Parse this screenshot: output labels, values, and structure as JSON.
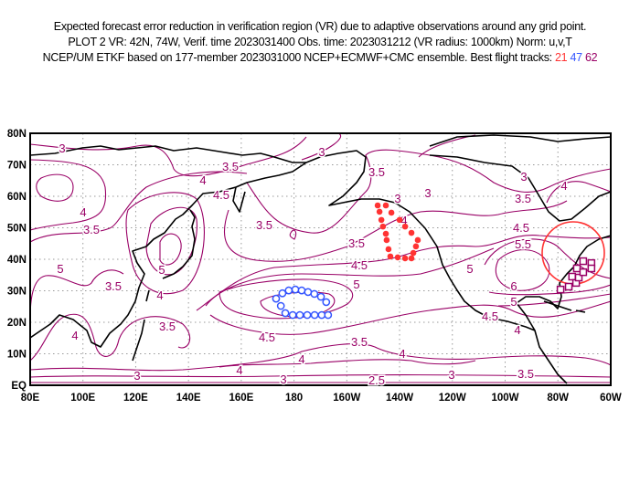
{
  "title": {
    "line1": "Expected forecast error reduction in verification region (VR) due to adaptive observations around any grid point.",
    "line2": "PLOT 2 VR: 42N, 74W, Verif. time 2023031400 Obs. time: 2023031212 (VR radius: 1000km) Norm: u,v,T",
    "line3_prefix": "NCEP/UM ETKF based on 177-member 2023031000 NCEP+ECMWF+CMC ensemble. Best flight tracks:",
    "tracks": [
      "21",
      "47",
      "62"
    ]
  },
  "colors": {
    "track_21": "#ff3333",
    "track_47": "#3355ff",
    "track_62": "#990066",
    "contour": "#990066",
    "vr_circle": "#ff3333"
  },
  "axes": {
    "lon_labels": [
      "80E",
      "100E",
      "120E",
      "140E",
      "160E",
      "180",
      "160W",
      "140W",
      "120W",
      "100W",
      "80W",
      "60W"
    ],
    "lat_labels": [
      "EQ",
      "10N",
      "20N",
      "30N",
      "40N",
      "50N",
      "60N",
      "70N",
      "80N"
    ]
  },
  "contour_labels": [
    "3",
    "3.5",
    "4",
    "4.5",
    "5",
    "3.5",
    "4",
    "3.5",
    "5",
    "4",
    "3.5",
    "4",
    "3.5",
    "3",
    "4",
    "4.5",
    "4",
    "3",
    "3.5",
    "4",
    "3",
    "3.5",
    "4.5",
    "5",
    "3",
    "3.5",
    "4.5",
    "5.5",
    "5",
    "6",
    "5",
    "4.5",
    "4",
    "3",
    "3.5",
    "4",
    "3",
    "3.5",
    "2.5",
    "4",
    "3"
  ],
  "map_data": {
    "vr": {
      "lat": 42,
      "lon": -74,
      "radius_km": 1000
    },
    "track_21_points": [
      [
        211.7,
        57.1
      ],
      [
        214.8,
        57.1
      ],
      [
        212.4,
        55.1
      ],
      [
        216.9,
        54.8
      ],
      [
        213.1,
        52.5
      ],
      [
        220.0,
        52.5
      ],
      [
        213.7,
        50.4
      ],
      [
        222.1,
        50.4
      ],
      [
        224.5,
        48.4
      ],
      [
        214.8,
        48.1
      ],
      [
        226.9,
        46.1
      ],
      [
        215.1,
        46.1
      ],
      [
        226.2,
        44.1
      ],
      [
        215.8,
        43.2
      ],
      [
        225.2,
        42.0
      ],
      [
        216.5,
        40.9
      ],
      [
        219.3,
        40.6
      ],
      [
        222.1,
        40.3
      ],
      [
        224.5,
        40.3
      ]
    ],
    "track_47_points": [
      [
        173.2,
        27.5
      ],
      [
        175.6,
        29.2
      ],
      [
        178.0,
        30.1
      ],
      [
        180.5,
        30.4
      ],
      [
        182.9,
        30.1
      ],
      [
        185.3,
        29.6
      ],
      [
        187.7,
        29.0
      ],
      [
        190.2,
        28.1
      ],
      [
        192.2,
        26.4
      ],
      [
        175.0,
        25.2
      ],
      [
        176.7,
        22.9
      ],
      [
        179.5,
        22.3
      ],
      [
        182.2,
        22.3
      ],
      [
        185.0,
        22.3
      ],
      [
        187.8,
        22.3
      ],
      [
        190.5,
        22.3
      ],
      [
        192.9,
        22.3
      ]
    ],
    "track_62_points": [
      [
        281.0,
        30.4
      ],
      [
        284.1,
        31.3
      ],
      [
        285.4,
        34.5
      ],
      [
        286.9,
        32.5
      ],
      [
        287.9,
        34.2
      ],
      [
        287.2,
        37.1
      ],
      [
        289.6,
        35.9
      ],
      [
        289.6,
        39.4
      ],
      [
        292.7,
        38.8
      ],
      [
        292.7,
        37.1
      ]
    ]
  }
}
